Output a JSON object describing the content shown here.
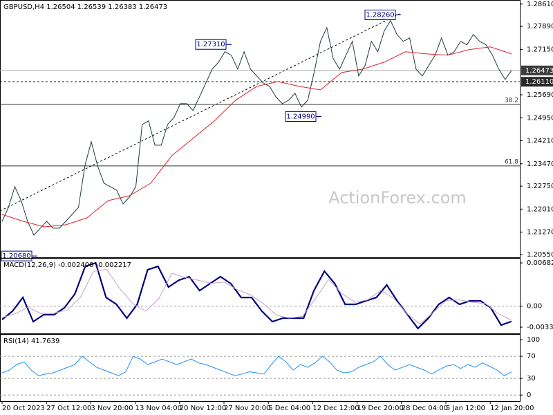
{
  "watermark": "ActionForex.com",
  "time_labels": [
    "20 Oct 2023",
    "27 Oct 12:00",
    "3 Nov 20:00",
    "13 Nov 04:00",
    "20 Nov 12:00",
    "27 Nov 20:00",
    "5 Dec 04:00",
    "12 Dec 12:00",
    "19 Dec 20:00",
    "28 Dec 04:00",
    "5 Jan 12:00",
    "12 Jan 20:00"
  ],
  "chart_data": [
    {
      "type": "line",
      "title": "GBPUSD,H4 1.26504 1.26539 1.26383 1.26473",
      "ylim": [
        1.2046,
        1.2874
      ],
      "yticks": [
        {
          "value": 1.2861,
          "label": "1.28610"
        },
        {
          "value": 1.2789,
          "label": "1.27890"
        },
        {
          "value": 1.2715,
          "label": "1.27150"
        },
        {
          "value": 1.2569,
          "label": "1.25690"
        },
        {
          "value": 1.2495,
          "label": "1.24950"
        },
        {
          "value": 1.2421,
          "label": "1.24210"
        },
        {
          "value": 1.2347,
          "label": "1.23470"
        },
        {
          "value": 1.2275,
          "label": "1.22750"
        },
        {
          "value": 1.2201,
          "label": "1.22010"
        },
        {
          "value": 1.2127,
          "label": "1.21270"
        },
        {
          "value": 1.2055,
          "label": "1.20550"
        }
      ],
      "price_markers": [
        {
          "value": 1.26473,
          "label": "1.26473",
          "style": "solid"
        },
        {
          "value": 1.2611,
          "label": "1.26110",
          "style": "dashed"
        }
      ],
      "levels": [
        {
          "value": 1.2538,
          "label": "38.2"
        },
        {
          "value": 1.234,
          "label": "61.8"
        }
      ],
      "annotations": [
        {
          "value": 1.2826,
          "label": "1.28260"
        },
        {
          "value": 1.2731,
          "label": "1.27310"
        },
        {
          "value": 1.2499,
          "label": "1.24990"
        },
        {
          "value": 1.2068,
          "label": "1.20680"
        }
      ],
      "series": [
        {
          "color": "#1f3a3a",
          "values": [
            1.21618,
            1.22064,
            1.22732,
            1.22286,
            1.21618,
            1.21173,
            1.21396,
            1.21618,
            1.21396,
            1.21396,
            1.21618,
            1.21841,
            1.22064,
            1.234,
            1.24179,
            1.234,
            1.22843,
            1.22732,
            1.22621,
            1.22175,
            1.22398,
            1.22732,
            1.24736,
            1.24847,
            1.24068,
            1.24068,
            1.24736,
            1.24959,
            1.25404,
            1.25404,
            1.25181,
            1.25627,
            1.26072,
            1.26517,
            1.2674,
            1.27074,
            1.26963,
            1.26517,
            1.27074,
            1.26517,
            1.26295,
            1.26072,
            1.25961,
            1.25627,
            1.25404,
            1.25515,
            1.25738,
            1.25293,
            1.25515,
            1.26406,
            1.27408,
            1.27853,
            1.26851,
            1.26517,
            1.26963,
            1.27408,
            1.26295,
            1.26629,
            1.27408,
            1.27074,
            1.27742,
            1.28076,
            1.27631,
            1.27408,
            1.27519,
            1.26517,
            1.26295,
            1.26629,
            1.26963,
            1.27519,
            1.26963,
            1.27074,
            1.27408,
            1.27297,
            1.27631,
            1.27408,
            1.27297,
            1.26963,
            1.26517,
            1.26183,
            1.26473
          ]
        },
        {
          "color": "#e0202a",
          "values": [
            1.21841,
            1.21618,
            1.21439,
            1.21506,
            1.21729,
            1.22286,
            1.22442,
            1.22843,
            1.23734,
            1.2429,
            1.24847,
            1.25515,
            1.25961,
            1.26116,
            1.25961,
            1.25849,
            1.26406,
            1.26517,
            1.2674,
            1.27074,
            1.27007,
            1.26963,
            1.27141,
            1.2723,
            1.27007
          ]
        }
      ]
    },
    {
      "type": "line",
      "title": "MACD(12,26,9) -0.002400 -0.002217",
      "ylim": [
        -0.0043,
        0.0076
      ],
      "yticks": [
        0.006823,
        {
          "value": 0,
          "label": "0.00"
        },
        -0.003321
      ],
      "series": [
        {
          "color": "#000080",
          "values": [
            -0.00212,
            -0.00081,
            0.00137,
            -0.00244,
            -0.00135,
            -0.00135,
            -0.00026,
            0.00192,
            0.00628,
            0.00683,
            0.00137,
            0.00028,
            -0.0019,
            0.00028,
            0.00574,
            0.00628,
            0.00301,
            0.0041,
            0.00465,
            0.00246,
            0.00356,
            0.00465,
            0.00356,
            0.00137,
            0.00137,
            -0.00081,
            -0.00244,
            -0.0019,
            -0.0019,
            -0.0019,
            0.00246,
            0.00552,
            0.00356,
            0.00028,
            0.00028,
            0.00083,
            0.00137,
            0.00334,
            0.00083,
            -0.00135,
            -0.00353,
            -0.0019,
            0.00028,
            0.00137,
            0.00028,
            0.00083,
            0.00083,
            -0.00026,
            -0.00299,
            -0.0024
          ]
        },
        {
          "color": "#c8a0c8",
          "values": [
            -0.0018,
            -0.0012,
            -0.0002,
            -0.0012,
            -0.0011,
            -0.0006,
            0.0014,
            0.0055,
            0.0058,
            0.0028,
            0.0004,
            -0.0008,
            0.0012,
            0.0052,
            0.0045,
            0.0041,
            0.0036,
            0.0038,
            0.0026,
            0.0018,
            0.0004,
            -0.0014,
            -0.0019,
            -0.0016,
            0.0012,
            0.0042,
            0.002,
            0.0006,
            0.001,
            0.0025,
            0.0012,
            -0.0012,
            -0.0028,
            -0.001,
            0.0009,
            0.001,
            0.0006,
            0.0004,
            -0.0012,
            -0.002217
          ]
        }
      ]
    },
    {
      "type": "line",
      "title": "RSI(14) 41.7639",
      "ylim": [
        -11,
        110
      ],
      "yticks": [
        0,
        30,
        70,
        100
      ],
      "level_lines": [
        70,
        30
      ],
      "series": [
        {
          "color": "#1e90ff",
          "values": [
            40,
            45,
            55,
            60,
            45,
            35,
            38,
            40,
            45,
            50,
            55,
            70,
            60,
            50,
            45,
            40,
            35,
            42,
            70,
            65,
            55,
            60,
            65,
            60,
            55,
            60,
            65,
            58,
            55,
            50,
            45,
            40,
            35,
            38,
            42,
            40,
            38,
            55,
            70,
            60,
            45,
            55,
            50,
            58,
            70,
            60,
            45,
            40,
            42,
            50,
            55,
            60,
            70,
            55,
            45,
            50,
            55,
            50,
            45,
            38,
            45,
            52,
            55,
            48,
            55,
            50,
            58,
            52,
            45,
            35,
            41.7639
          ]
        }
      ]
    }
  ]
}
